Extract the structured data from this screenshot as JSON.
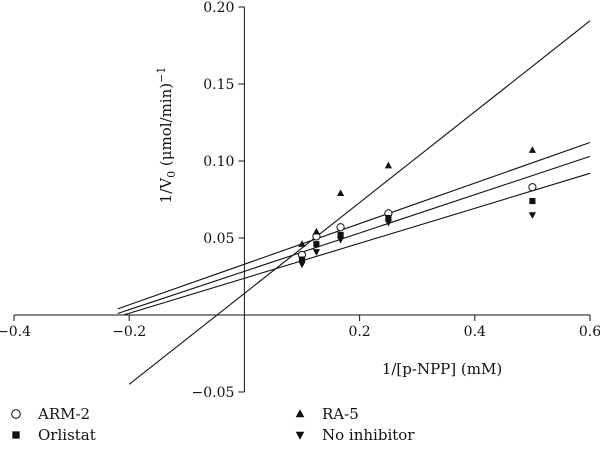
{
  "chart_data": {
    "type": "scatter",
    "title": "",
    "xlabel": "1/[p-NPP] (mM)",
    "ylabel_main": "1/V",
    "ylabel_sub": "0",
    "ylabel_rest": " (μmol/min)",
    "ylabel_sup": "−1",
    "xlim": [
      -0.4,
      0.6
    ],
    "ylim": [
      -0.05,
      0.2
    ],
    "grid": false,
    "legend_position": "bottom",
    "x_ticks": [
      {
        "value": -0.4,
        "label": "−0.4"
      },
      {
        "value": -0.2,
        "label": "−0.2"
      },
      {
        "value": 0.2,
        "label": "0.2"
      },
      {
        "value": 0.4,
        "label": "0.4"
      },
      {
        "value": 0.6,
        "label": "0.6"
      }
    ],
    "y_ticks": [
      {
        "value": -0.05,
        "label": "−0.05"
      },
      {
        "value": 0.05,
        "label": "0.05"
      },
      {
        "value": 0.1,
        "label": "0.10"
      },
      {
        "value": 0.15,
        "label": "0.15"
      },
      {
        "value": 0.2,
        "label": "0.20"
      }
    ],
    "series": [
      {
        "name": "ARM-2",
        "marker": "circle-open",
        "points": [
          [
            0.1,
            0.039
          ],
          [
            0.125,
            0.051
          ],
          [
            0.167,
            0.057
          ],
          [
            0.25,
            0.066
          ],
          [
            0.5,
            0.083
          ]
        ],
        "fit_line": [
          [
            -0.22,
            0.001
          ],
          [
            0.6,
            0.103
          ]
        ]
      },
      {
        "name": "Orlistat",
        "marker": "square",
        "points": [
          [
            0.1,
            0.036
          ],
          [
            0.125,
            0.046
          ],
          [
            0.167,
            0.052
          ],
          [
            0.25,
            0.063
          ],
          [
            0.5,
            0.074
          ]
        ],
        "fit_line": [
          [
            -0.22,
            0.004
          ],
          [
            0.6,
            0.112
          ]
        ]
      },
      {
        "name": "RA-5",
        "marker": "triangle-up",
        "points": [
          [
            0.1,
            0.046
          ],
          [
            0.125,
            0.054
          ],
          [
            0.167,
            0.079
          ],
          [
            0.25,
            0.097
          ],
          [
            0.5,
            0.107
          ]
        ],
        "fit_line": [
          [
            -0.2,
            -0.045
          ],
          [
            0.6,
            0.191
          ]
        ]
      },
      {
        "name": "No inhibitor",
        "marker": "triangle-down",
        "points": [
          [
            0.1,
            0.033
          ],
          [
            0.125,
            0.041
          ],
          [
            0.167,
            0.049
          ],
          [
            0.25,
            0.06
          ],
          [
            0.5,
            0.065
          ]
        ],
        "fit_line": [
          [
            -0.21,
            0.0
          ],
          [
            0.6,
            0.092
          ]
        ]
      }
    ]
  }
}
